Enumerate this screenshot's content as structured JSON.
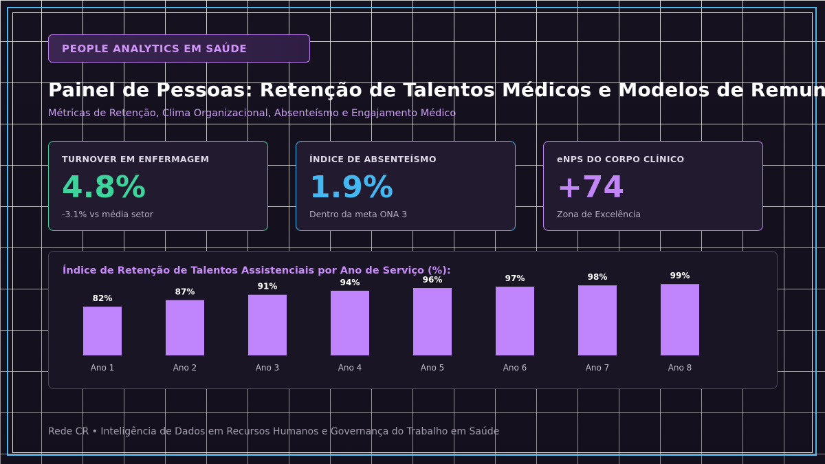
{
  "header": {
    "badge": "PEOPLE ANALYTICS EM SAÚDE",
    "title": "Painel de Pessoas: Retenção de Talentos Médicos e Modelos de Remuneração",
    "subtitle": "Métricas de Retenção, Clima Organizacional, Absenteísmo e Engajamento Médico"
  },
  "kpis": [
    {
      "label": "TURNOVER EM ENFERMAGEM",
      "value": "4.8%",
      "note": "-3.1% vs média setor",
      "color": "#3dd59b"
    },
    {
      "label": "ÍNDICE DE ABSENTEÍSMO",
      "value": "1.9%",
      "note": "Dentro da meta ONA 3",
      "color": "#45b8f2"
    },
    {
      "label": "eNPS DO CORPO CLÍNICO",
      "value": "+74",
      "note": "Zona de Excelência",
      "color": "#c386f6"
    }
  ],
  "chart_data": {
    "type": "bar",
    "title": "Índice de Retenção de Talentos Assistenciais por Ano de Serviço (%):",
    "categories": [
      "Ano 1",
      "Ano 2",
      "Ano 3",
      "Ano 4",
      "Ano 5",
      "Ano 6",
      "Ano 7",
      "Ano 8"
    ],
    "values": [
      82,
      87,
      91,
      94,
      96,
      97,
      98,
      99
    ],
    "data_labels": [
      "82%",
      "87%",
      "91%",
      "94%",
      "96%",
      "97%",
      "98%",
      "99%"
    ],
    "ylim": [
      0,
      100
    ],
    "grid": false,
    "bar_color": "#c084fc"
  },
  "footer": "Rede CR • Inteligência de Dados em Recursos Humanos e Governança do Trabalho em Saúde"
}
